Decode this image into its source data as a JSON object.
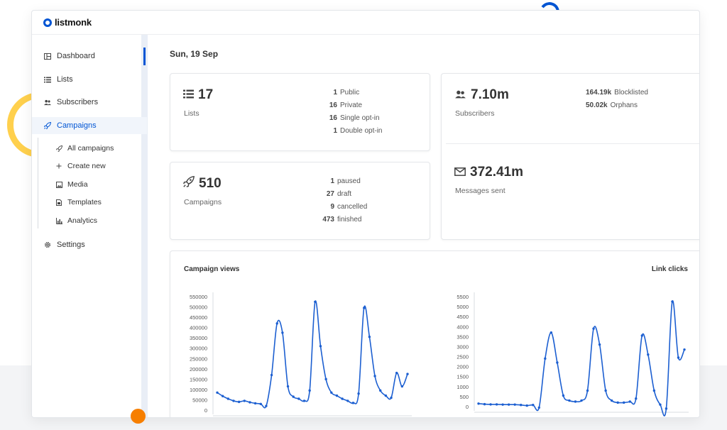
{
  "app": {
    "name": "listmonk"
  },
  "sidebar": {
    "items": [
      {
        "label": "Dashboard",
        "icon": "dashboard-icon",
        "active": false
      },
      {
        "label": "Lists",
        "icon": "list-icon",
        "active": false
      },
      {
        "label": "Subscribers",
        "icon": "users-icon",
        "active": false
      },
      {
        "label": "Campaigns",
        "icon": "rocket-icon",
        "active": true
      },
      {
        "label": "Settings",
        "icon": "gear-icon",
        "active": false
      }
    ],
    "campaign_subitems": [
      {
        "label": "All campaigns",
        "icon": "rocket-icon"
      },
      {
        "label": "Create new",
        "icon": "plus-icon"
      },
      {
        "label": "Media",
        "icon": "image-icon"
      },
      {
        "label": "Templates",
        "icon": "file-icon"
      },
      {
        "label": "Analytics",
        "icon": "bar-chart-icon"
      }
    ]
  },
  "dashboard": {
    "date": "Sun, 19 Sep",
    "lists": {
      "count": "17",
      "label": "Lists",
      "breakdown": [
        {
          "num": "1",
          "label": "Public"
        },
        {
          "num": "16",
          "label": "Private"
        },
        {
          "num": "16",
          "label": "Single opt-in"
        },
        {
          "num": "1",
          "label": "Double opt-in"
        }
      ]
    },
    "campaigns": {
      "count": "510",
      "label": "Campaigns",
      "breakdown": [
        {
          "num": "1",
          "label": "paused"
        },
        {
          "num": "27",
          "label": "draft"
        },
        {
          "num": "9",
          "label": "cancelled"
        },
        {
          "num": "473",
          "label": "finished"
        }
      ]
    },
    "subscribers": {
      "count": "7.10m",
      "label": "Subscribers",
      "breakdown": [
        {
          "num": "164.19k",
          "label": "Blocklisted"
        },
        {
          "num": "50.02k",
          "label": "Orphans"
        }
      ]
    },
    "messages": {
      "count": "372.41m",
      "label": "Messages sent"
    }
  },
  "colors": {
    "accent": "#0055d4",
    "line": "#1c5fd1"
  },
  "chart_data": [
    {
      "type": "line",
      "title": "Campaign views",
      "ylim": [
        0,
        550000
      ],
      "yticks": [
        0,
        50000,
        100000,
        150000,
        200000,
        250000,
        300000,
        350000,
        400000,
        450000,
        500000,
        550000
      ],
      "values": [
        85000,
        68000,
        55000,
        45000,
        40000,
        45000,
        38000,
        33000,
        30000,
        20000,
        170000,
        420000,
        375000,
        115000,
        65000,
        55000,
        45000,
        95000,
        525000,
        310000,
        150000,
        85000,
        70000,
        55000,
        45000,
        35000,
        80000,
        495000,
        355000,
        165000,
        95000,
        70000,
        60000,
        180000,
        115000,
        175000
      ]
    },
    {
      "type": "line",
      "title": "Link clicks",
      "ylim": [
        0,
        5500
      ],
      "yticks": [
        0,
        500,
        1000,
        1500,
        2000,
        2500,
        3000,
        3500,
        4000,
        4500,
        5000,
        5500
      ],
      "values": [
        150,
        120,
        110,
        110,
        100,
        100,
        100,
        80,
        50,
        80,
        -50,
        2400,
        3700,
        2200,
        550,
        300,
        250,
        300,
        800,
        3900,
        3100,
        800,
        300,
        200,
        200,
        250,
        400,
        3550,
        2600,
        800,
        100,
        -100,
        5250,
        2450,
        2850
      ]
    }
  ]
}
